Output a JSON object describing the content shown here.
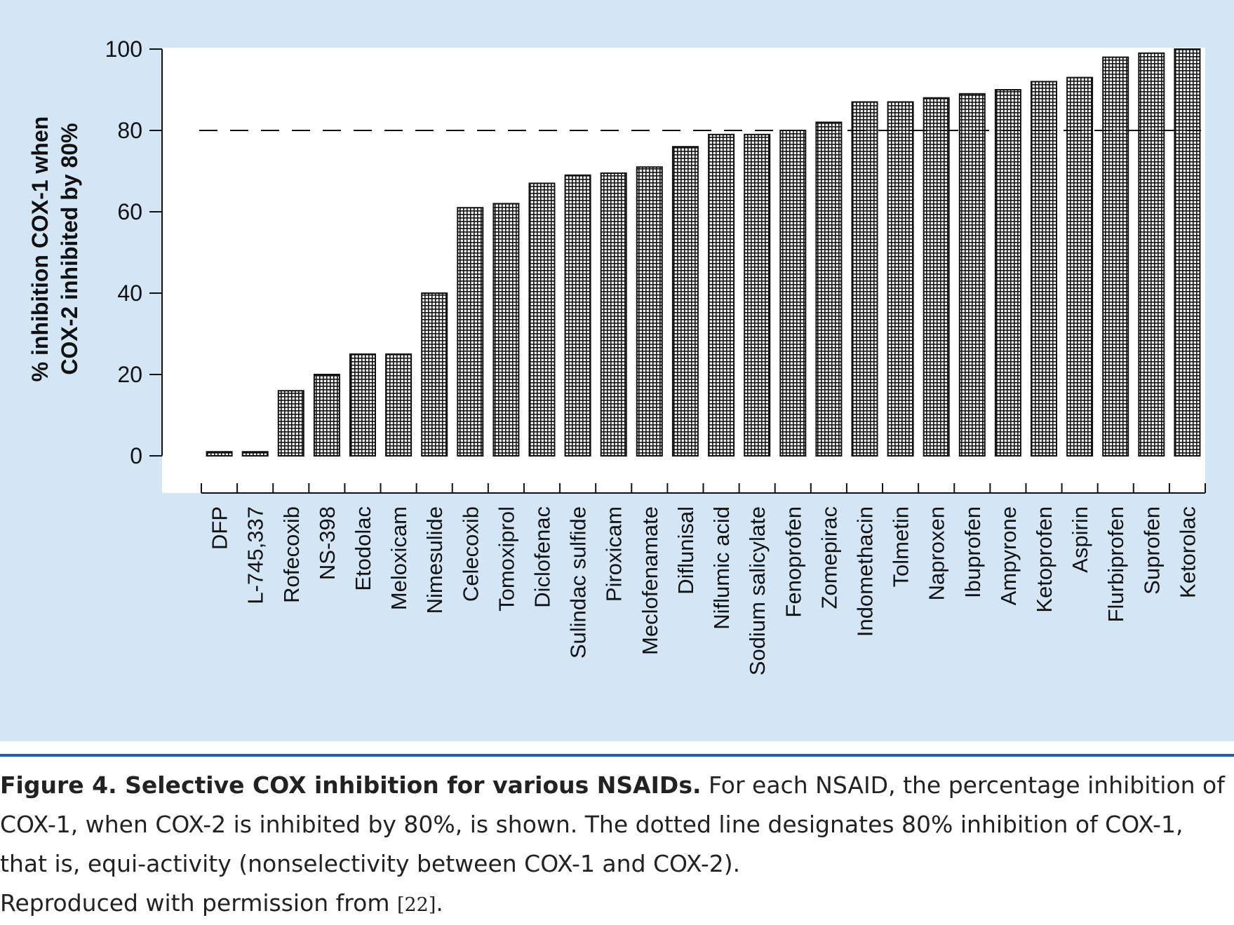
{
  "chart_data": {
    "type": "bar",
    "ylabel_line1": "% inhibition COX-1 when",
    "ylabel_line2": "COX-2 inhibited by 80%",
    "xlabel": "",
    "ylim": [
      0,
      100
    ],
    "yticks": [
      0,
      20,
      40,
      60,
      80,
      100
    ],
    "reference_line": {
      "value": 80,
      "style": "dashed"
    },
    "categories": [
      "DFP",
      "L-745,337",
      "Rofecoxib",
      "NS-398",
      "Etodolac",
      "Meloxicam",
      "Nimesulide",
      "Celecoxib",
      "Tomoxiprol",
      "Diclofenac",
      "Sulindac sulfide",
      "Piroxicam",
      "Meclofenamate",
      "Diflunisal",
      "Niflumic acid",
      "Sodium salicylate",
      "Fenoprofen",
      "Zomepirac",
      "Indomethacin",
      "Tolmetin",
      "Naproxen",
      "Ibuprofen",
      "Ampyrone",
      "Ketoprofen",
      "Aspirin",
      "Flurbiprofen",
      "Suprofen",
      "Ketorolac"
    ],
    "values": [
      1,
      1,
      16,
      20,
      25,
      25,
      40,
      61,
      62,
      67,
      69,
      69.5,
      71,
      76,
      79,
      79,
      80,
      82,
      87,
      87,
      88,
      89,
      90,
      92,
      93,
      98,
      99,
      100
    ],
    "grid": false,
    "colors": {
      "panel": "#d4e6f6",
      "plot": "#ffffff",
      "bar_fill": "#ffffff",
      "bar_pattern": "#111111"
    }
  },
  "caption": {
    "lead": "Figure 4.  Selective COX inhibition for various NSAIDs.",
    "line1_rest": " For each NSAID, the percentage inhibition of",
    "line2": "COX-1, when COX-2 is inhibited by 80%, is shown. The dotted line designates 80% inhibition of COX-1,",
    "line3": "that is, equi-activity (nonselectivity between COX-1 and COX-2).",
    "line4_text": "Reproduced with permission from ",
    "line4_ref": "[22]",
    "line4_end": "."
  },
  "colors": {
    "rule": "#1f5fa8",
    "text": "#222222"
  }
}
